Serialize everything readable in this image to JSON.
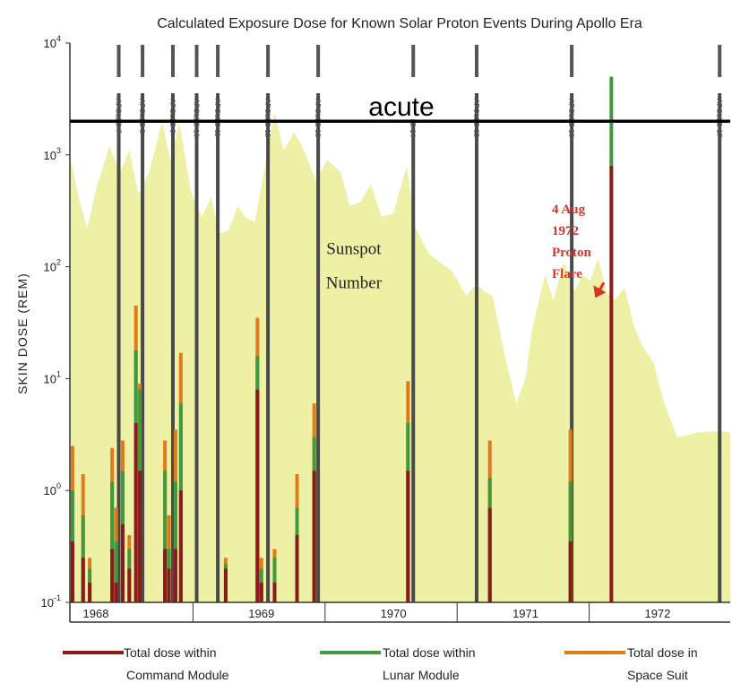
{
  "chart_data": {
    "type": "bar",
    "title": "Calculated Exposure Dose for Known Solar Proton Events During Apollo Era",
    "ylabel": "SKIN DOSE (REM)",
    "yscale": "log",
    "ylim": [
      0.1,
      10000
    ],
    "yticks": [
      {
        "value": 0.1,
        "base": "10",
        "exp": "-1"
      },
      {
        "value": 1,
        "base": "10",
        "exp": "0"
      },
      {
        "value": 10,
        "base": "10",
        "exp": "1"
      },
      {
        "value": 100,
        "base": "10",
        "exp": "2"
      },
      {
        "value": 1000,
        "base": "10",
        "exp": "3"
      },
      {
        "value": 10000,
        "base": "10",
        "exp": "4"
      }
    ],
    "xlim": [
      1968.0,
      1973.0
    ],
    "years": [
      "1968",
      "1969",
      "1970",
      "1971",
      "1972"
    ],
    "acute_level": 2000,
    "acute_label": "acute",
    "background_series": {
      "name": "Sunspot Number",
      "color": "#eef0a6",
      "points": [
        [
          1968.0,
          1000
        ],
        [
          1968.07,
          400
        ],
        [
          1968.13,
          220
        ],
        [
          1968.2,
          500
        ],
        [
          1968.3,
          1200
        ],
        [
          1968.38,
          700
        ],
        [
          1968.45,
          1100
        ],
        [
          1968.52,
          450
        ],
        [
          1968.6,
          700
        ],
        [
          1968.7,
          2000
        ],
        [
          1968.76,
          900
        ],
        [
          1968.83,
          1900
        ],
        [
          1968.92,
          450
        ],
        [
          1969.0,
          280
        ],
        [
          1969.07,
          420
        ],
        [
          1969.13,
          200
        ],
        [
          1969.2,
          210
        ],
        [
          1969.27,
          350
        ],
        [
          1969.33,
          280
        ],
        [
          1969.4,
          250
        ],
        [
          1969.47,
          700
        ],
        [
          1969.55,
          2400
        ],
        [
          1969.62,
          1100
        ],
        [
          1969.7,
          1600
        ],
        [
          1969.78,
          1050
        ],
        [
          1969.86,
          600
        ],
        [
          1969.95,
          900
        ],
        [
          1970.05,
          700
        ],
        [
          1970.12,
          350
        ],
        [
          1970.2,
          380
        ],
        [
          1970.28,
          550
        ],
        [
          1970.36,
          280
        ],
        [
          1970.45,
          300
        ],
        [
          1970.55,
          800
        ],
        [
          1970.62,
          220
        ],
        [
          1970.72,
          130
        ],
        [
          1970.8,
          110
        ],
        [
          1970.9,
          90
        ],
        [
          1971.0,
          55
        ],
        [
          1971.08,
          70
        ],
        [
          1971.14,
          60
        ],
        [
          1971.2,
          55
        ],
        [
          1971.3,
          15
        ],
        [
          1971.38,
          6
        ],
        [
          1971.45,
          10
        ],
        [
          1971.5,
          28
        ],
        [
          1971.6,
          85
        ],
        [
          1971.66,
          50
        ],
        [
          1971.74,
          110
        ],
        [
          1971.82,
          60
        ],
        [
          1971.88,
          85
        ],
        [
          1971.94,
          75
        ],
        [
          1972.0,
          120
        ],
        [
          1972.06,
          60
        ],
        [
          1972.12,
          50
        ],
        [
          1972.2,
          65
        ],
        [
          1972.27,
          30
        ],
        [
          1972.33,
          20
        ],
        [
          1972.42,
          14
        ],
        [
          1972.5,
          6
        ],
        [
          1972.6,
          3
        ],
        [
          1972.75,
          3.3
        ],
        [
          1972.9,
          3.4
        ],
        [
          1973.0,
          3.3
        ]
      ]
    },
    "missions": [
      {
        "x": 1968.37,
        "label": "APOLLO 7"
      },
      {
        "x": 1968.55,
        "label": "APOLLO 8"
      },
      {
        "x": 1968.78,
        "label": "APOLLO 9"
      },
      {
        "x": 1968.96,
        "label": "APOLLO 10"
      },
      {
        "x": 1969.12,
        "label": "APOLLO 11"
      },
      {
        "x": 1969.5,
        "label": "APOLLO 12"
      },
      {
        "x": 1969.88,
        "label": "APOLLO 13"
      },
      {
        "x": 1970.6,
        "label": "APOLLO 14"
      },
      {
        "x": 1971.08,
        "label": "APOLLO 15"
      },
      {
        "x": 1971.8,
        "label": "APOLLO 16"
      },
      {
        "x": 1972.92,
        "label": "APOLLO 17"
      }
    ],
    "series": [
      {
        "name": "Total dose within Command Module",
        "color": "#8b1a1a"
      },
      {
        "name": "Total dose within Lunar Module",
        "color": "#3f9a3f"
      },
      {
        "name": "Total dose in Space Suit",
        "color": "#e07b1a"
      }
    ],
    "events": [
      {
        "x": 1968.02,
        "values": [
          0.35,
          1.0,
          2.5
        ]
      },
      {
        "x": 1968.1,
        "values": [
          0.25,
          0.6,
          1.4
        ]
      },
      {
        "x": 1968.15,
        "values": [
          0.15,
          0.2,
          0.25
        ]
      },
      {
        "x": 1968.32,
        "values": [
          0.3,
          1.2,
          2.4
        ]
      },
      {
        "x": 1968.35,
        "values": [
          0.15,
          0.35,
          0.7
        ]
      },
      {
        "x": 1968.4,
        "values": [
          0.5,
          1.5,
          2.8
        ]
      },
      {
        "x": 1968.45,
        "values": [
          0.2,
          0.3,
          0.4
        ]
      },
      {
        "x": 1968.5,
        "values": [
          4.0,
          18.0,
          45.0
        ]
      },
      {
        "x": 1968.53,
        "values": [
          1.5,
          8.0,
          9.0
        ]
      },
      {
        "x": 1968.72,
        "values": [
          0.3,
          1.5,
          2.8
        ]
      },
      {
        "x": 1968.75,
        "values": [
          0.2,
          0.3,
          0.6
        ]
      },
      {
        "x": 1968.8,
        "values": [
          0.3,
          1.2,
          3.5
        ]
      },
      {
        "x": 1968.84,
        "values": [
          1.0,
          6.0,
          17.0
        ]
      },
      {
        "x": 1969.18,
        "values": [
          0.2,
          0.22,
          0.25
        ]
      },
      {
        "x": 1969.42,
        "values": [
          8.0,
          16.0,
          35.0
        ]
      },
      {
        "x": 1969.45,
        "values": [
          0.15,
          0.2,
          0.25
        ]
      },
      {
        "x": 1969.55,
        "values": [
          0.15,
          0.25,
          0.3
        ]
      },
      {
        "x": 1969.72,
        "values": [
          0.4,
          0.7,
          1.4
        ]
      },
      {
        "x": 1969.85,
        "values": [
          1.5,
          3.0,
          6.0
        ]
      },
      {
        "x": 1970.56,
        "values": [
          1.5,
          4.0,
          9.5
        ]
      },
      {
        "x": 1971.18,
        "values": [
          0.7,
          1.3,
          2.8
        ]
      },
      {
        "x": 1971.79,
        "values": [
          0.35,
          1.2,
          3.5
        ]
      },
      {
        "x": 1972.1,
        "values": [
          800,
          5000,
          2000
        ]
      }
    ],
    "annotations": [
      {
        "text": "Sunspot Number",
        "lines": [
          "Sunspot",
          "Number"
        ],
        "x": 1970.15,
        "y": 130
      },
      {
        "text": "4 Aug 1972 Proton Flare",
        "lines": [
          "4 Aug",
          "1972",
          "Proton",
          "Flare"
        ],
        "x": 1971.65,
        "y": 300,
        "arrow_to_x": 1972.1,
        "arrow_y": 60
      }
    ],
    "legend": {
      "position": "bottom",
      "items": [
        {
          "lines": [
            "Total dose within",
            "Command Module"
          ],
          "color": "#8b1a1a"
        },
        {
          "lines": [
            "Total dose within",
            "Lunar Module"
          ],
          "color": "#3f9a3f"
        },
        {
          "lines": [
            "Total dose in",
            "Space Suit"
          ],
          "color": "#e07b1a"
        }
      ]
    },
    "grid": false
  }
}
